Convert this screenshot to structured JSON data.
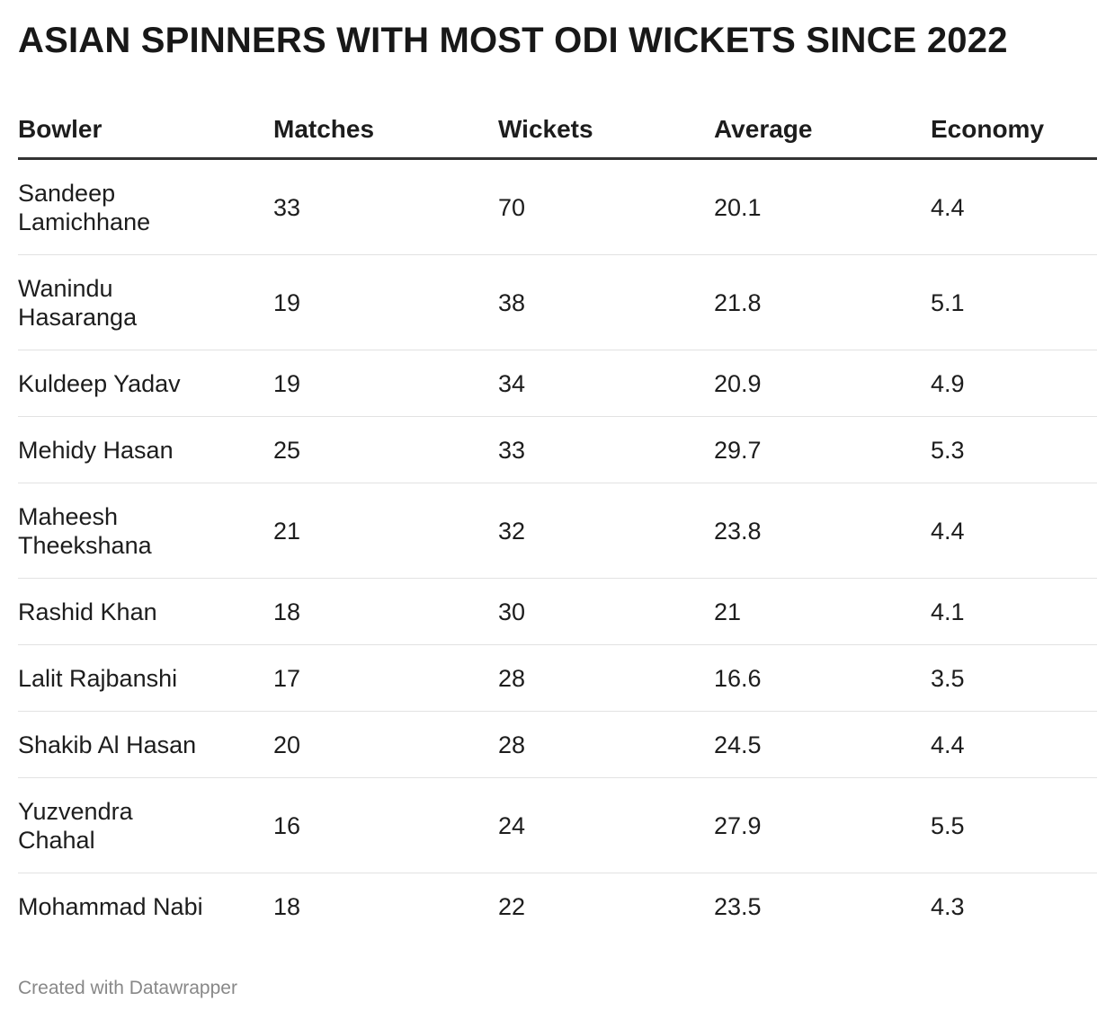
{
  "chart_data": {
    "type": "table",
    "title": "ASIAN SPINNERS WITH MOST ODI WICKETS SINCE 2022",
    "columns": [
      "Bowler",
      "Matches",
      "Wickets",
      "Average",
      "Economy"
    ],
    "rows": [
      {
        "bowler": "Sandeep\nLamichhane",
        "matches": "33",
        "wickets": "70",
        "average": "20.1",
        "economy": "4.4"
      },
      {
        "bowler": "Wanindu\nHasaranga",
        "matches": "19",
        "wickets": "38",
        "average": "21.8",
        "economy": "5.1"
      },
      {
        "bowler": "Kuldeep Yadav",
        "matches": "19",
        "wickets": "34",
        "average": "20.9",
        "economy": "4.9"
      },
      {
        "bowler": "Mehidy Hasan",
        "matches": "25",
        "wickets": "33",
        "average": "29.7",
        "economy": "5.3"
      },
      {
        "bowler": "Maheesh\nTheekshana",
        "matches": "21",
        "wickets": "32",
        "average": "23.8",
        "economy": "4.4"
      },
      {
        "bowler": "Rashid Khan",
        "matches": "18",
        "wickets": "30",
        "average": "21",
        "economy": "4.1"
      },
      {
        "bowler": "Lalit Rajbanshi",
        "matches": "17",
        "wickets": "28",
        "average": "16.6",
        "economy": "3.5"
      },
      {
        "bowler": "Shakib Al Hasan",
        "matches": "20",
        "wickets": "28",
        "average": "24.5",
        "economy": "4.4"
      },
      {
        "bowler": "Yuzvendra\nChahal",
        "matches": "16",
        "wickets": "24",
        "average": "27.9",
        "economy": "5.5"
      },
      {
        "bowler": "Mohammad Nabi",
        "matches": "18",
        "wickets": "22",
        "average": "23.5",
        "economy": "4.3"
      }
    ],
    "footer": "Created with Datawrapper",
    "colors": {
      "text": "#1d1d1d",
      "header_rule": "#333333",
      "row_rule": "#e2e2e2",
      "footer": "#888888"
    }
  }
}
